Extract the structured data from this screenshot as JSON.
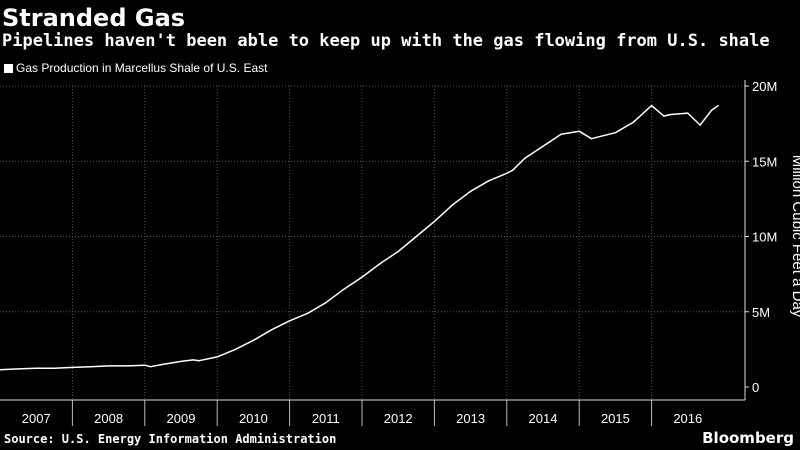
{
  "header": {
    "title": "Stranded Gas",
    "subtitle": "Pipelines haven't been able to keep up with the gas flowing from U.S. shale"
  },
  "footer": {
    "source": "Source: U.S. Energy Information Administration",
    "brand": "Bloomberg"
  },
  "colors": {
    "background": "#000000",
    "line": "#ffffff",
    "grid": "#555555"
  },
  "chart_data": {
    "type": "line",
    "title": "Stranded Gas",
    "subtitle": "Pipelines haven't been able to keep up with the gas flowing from U.S. shale",
    "ylabel": "Million Cubic Feet a Day",
    "xlabel": "",
    "ylim": [
      0,
      20000000
    ],
    "yticks": [
      0,
      5000000,
      10000000,
      15000000,
      20000000
    ],
    "ytick_labels": [
      "0",
      "5M",
      "10M",
      "15M",
      "20M"
    ],
    "xlim": [
      2007.0,
      2017.0
    ],
    "x_category_labels": [
      "2007",
      "2008",
      "2009",
      "2010",
      "2011",
      "2012",
      "2013",
      "2014",
      "2015",
      "2016"
    ],
    "grid": true,
    "legend_position": "top-left",
    "series": [
      {
        "name": "Gas Production in Marcellus Shale of U.S. East",
        "x": [
          2007.0,
          2007.25,
          2007.5,
          2007.75,
          2008.0,
          2008.25,
          2008.5,
          2008.75,
          2009.0,
          2009.08,
          2009.25,
          2009.5,
          2009.67,
          2009.75,
          2010.0,
          2010.25,
          2010.5,
          2010.75,
          2011.0,
          2011.25,
          2011.5,
          2011.75,
          2012.0,
          2012.25,
          2012.5,
          2012.75,
          2013.0,
          2013.25,
          2013.5,
          2013.75,
          2014.0,
          2014.08,
          2014.25,
          2014.5,
          2014.75,
          2015.0,
          2015.17,
          2015.25,
          2015.5,
          2015.75,
          2016.0,
          2016.17,
          2016.25,
          2016.5,
          2016.67,
          2016.83,
          2016.92
        ],
        "values": [
          1150000,
          1200000,
          1250000,
          1250000,
          1300000,
          1350000,
          1400000,
          1400000,
          1450000,
          1350000,
          1500000,
          1700000,
          1800000,
          1750000,
          2000000,
          2500000,
          3100000,
          3800000,
          4400000,
          4900000,
          5600000,
          6500000,
          7300000,
          8200000,
          9000000,
          10000000,
          11000000,
          12100000,
          13000000,
          13700000,
          14200000,
          14400000,
          15200000,
          16000000,
          16800000,
          17000000,
          16500000,
          16600000,
          16900000,
          17600000,
          18700000,
          18000000,
          18100000,
          18200000,
          17400000,
          18400000,
          18700000
        ]
      }
    ]
  }
}
